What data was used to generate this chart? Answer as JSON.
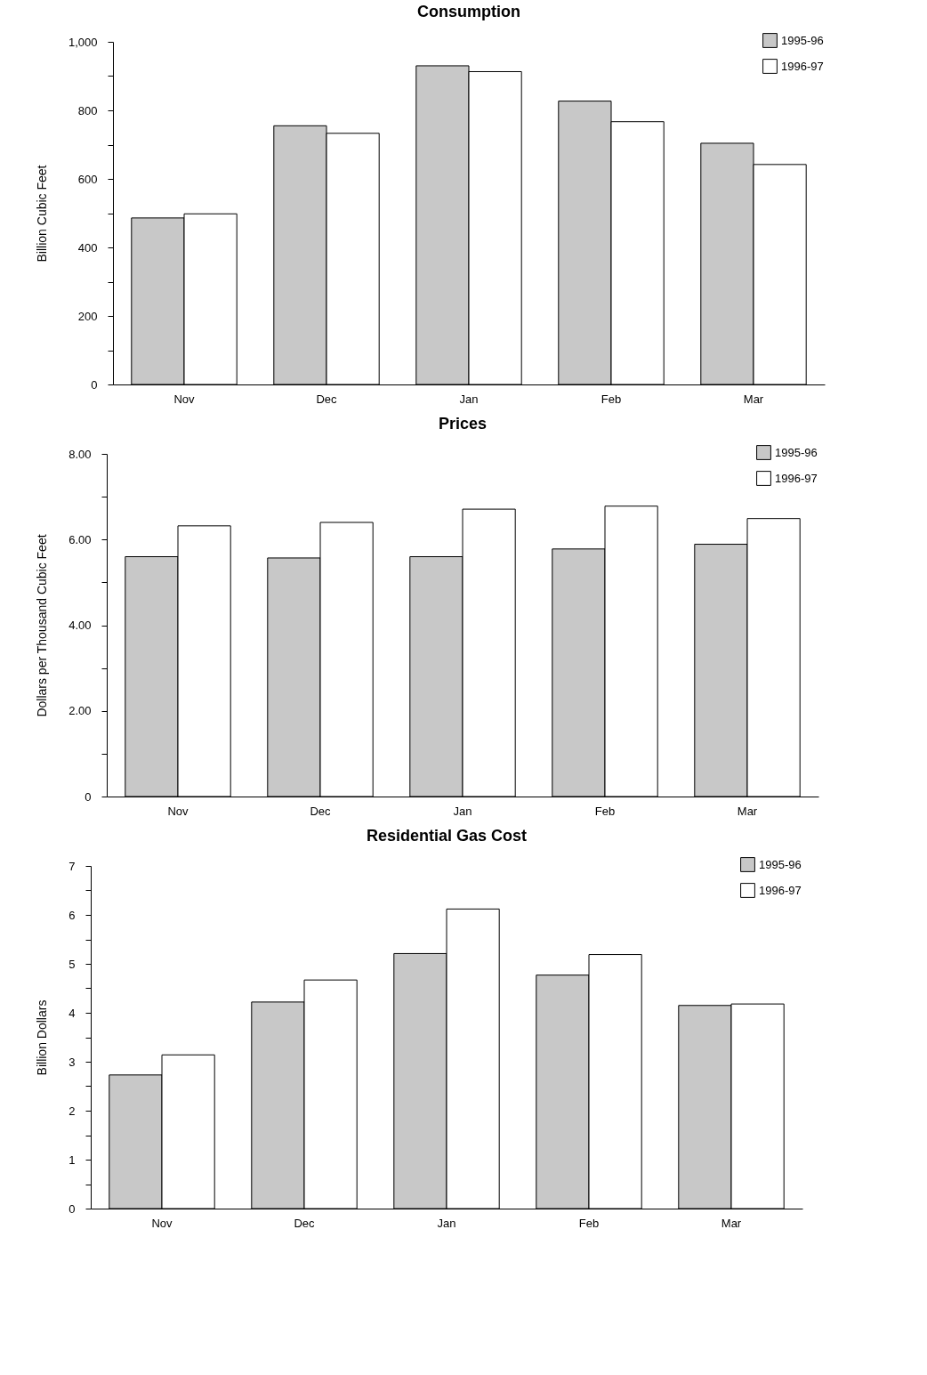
{
  "chart_data": [
    {
      "type": "bar",
      "title": "Consumption",
      "ylabel": "Billion Cubic Feet",
      "categories": [
        "Nov",
        "Dec",
        "Jan",
        "Feb",
        "Mar"
      ],
      "series": [
        {
          "name": "1995-96",
          "color": "#c8c8c8",
          "values": [
            486,
            755,
            930,
            827,
            704
          ]
        },
        {
          "name": "1996-97",
          "color": "#ffffff",
          "values": [
            498,
            733,
            913,
            767,
            642
          ]
        }
      ],
      "ylim": [
        0,
        1000
      ],
      "yticks": [
        0,
        {
          "value": 100,
          "label": null
        },
        200,
        {
          "value": 300,
          "label": null
        },
        400,
        {
          "value": 500,
          "label": null
        },
        600,
        {
          "value": 700,
          "label": null
        },
        800,
        {
          "value": 900,
          "label": null
        },
        {
          "value": 1000,
          "label": "1,000"
        }
      ],
      "legend": "top right"
    },
    {
      "type": "bar",
      "title": "Prices",
      "ylabel": "Dollars per Thousand Cubic Feet",
      "categories": [
        "Nov",
        "Dec",
        "Jan",
        "Feb",
        "Mar"
      ],
      "series": [
        {
          "name": "1995-96",
          "color": "#c8c8c8",
          "values": [
            5.6,
            5.57,
            5.6,
            5.78,
            5.89
          ]
        },
        {
          "name": "1996-97",
          "color": "#ffffff",
          "values": [
            6.32,
            6.4,
            6.71,
            6.78,
            6.49
          ]
        }
      ],
      "ylim": [
        0,
        8
      ],
      "yticks": [
        0,
        {
          "value": 1,
          "label": null
        },
        {
          "value": 2,
          "label": "2.00"
        },
        {
          "value": 3,
          "label": null
        },
        {
          "value": 4,
          "label": "4.00"
        },
        {
          "value": 5,
          "label": null
        },
        {
          "value": 6,
          "label": "6.00"
        },
        {
          "value": 7,
          "label": null
        },
        {
          "value": 8,
          "label": "8.00"
        }
      ],
      "legend": "top right"
    },
    {
      "type": "bar",
      "title": "Residential Gas Cost",
      "ylabel": "Billion Dollars",
      "categories": [
        "Nov",
        "Dec",
        "Jan",
        "Feb",
        "Mar"
      ],
      "series": [
        {
          "name": "1995-96",
          "color": "#c8c8c8",
          "values": [
            2.73,
            4.22,
            5.21,
            4.77,
            4.15
          ]
        },
        {
          "name": "1996-97",
          "color": "#ffffff",
          "values": [
            3.14,
            4.67,
            6.12,
            5.19,
            4.18
          ]
        }
      ],
      "ylim": [
        0,
        7
      ],
      "yticks": [
        0,
        {
          "value": 0.5,
          "label": null
        },
        1,
        {
          "value": 1.5,
          "label": null
        },
        2,
        {
          "value": 2.5,
          "label": null
        },
        3,
        {
          "value": 3.5,
          "label": null
        },
        4,
        {
          "value": 4.5,
          "label": null
        },
        5,
        {
          "value": 5.5,
          "label": null
        },
        6,
        {
          "value": 6.5,
          "label": null
        },
        7
      ],
      "legend": "top right"
    }
  ]
}
